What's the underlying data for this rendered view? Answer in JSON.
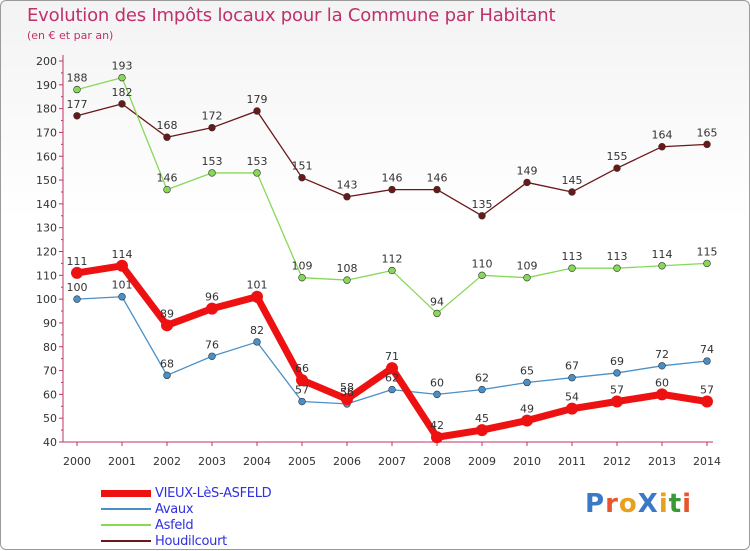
{
  "header": {
    "title": "Evolution des Impôts locaux pour la Commune par Habitant",
    "subtitle": "(en € et par an)"
  },
  "brand": {
    "text": "ProXiti",
    "colors": [
      "#3a78c8",
      "#e8542c",
      "#e8a020",
      "#3a78c8",
      "#e8a020",
      "#3a9a3a",
      "#e8542c"
    ]
  },
  "chart_data": {
    "type": "line",
    "title": "Evolution des Impôts locaux pour la Commune par Habitant",
    "xlabel": "",
    "ylabel": "",
    "ylim": [
      40,
      200
    ],
    "yticks": [
      40,
      50,
      60,
      70,
      80,
      90,
      100,
      110,
      120,
      130,
      140,
      150,
      160,
      170,
      180,
      190,
      200
    ],
    "grid": false,
    "legend_position": "bottom-left",
    "x": [
      "2000",
      "2001",
      "2002",
      "2003",
      "2004",
      "2005",
      "2006",
      "2007",
      "2008",
      "2009",
      "2010",
      "2011",
      "2012",
      "2013",
      "2014"
    ],
    "series": [
      {
        "name": "VIEUX-LèS-ASFELD",
        "color": "#ee1111",
        "values": [
          111,
          114,
          89,
          96,
          101,
          66,
          58,
          71,
          42,
          45,
          49,
          54,
          57,
          60,
          57
        ]
      },
      {
        "name": "Avaux",
        "color": "#4a90c8",
        "values": [
          100,
          101,
          68,
          76,
          82,
          57,
          56,
          62,
          60,
          62,
          65,
          67,
          69,
          72,
          74
        ]
      },
      {
        "name": "Asfeld",
        "color": "#88d858",
        "values": [
          188,
          193,
          146,
          153,
          153,
          109,
          108,
          112,
          94,
          110,
          109,
          113,
          113,
          114,
          115
        ]
      },
      {
        "name": "Houdilcourt",
        "color": "#6a1818",
        "values": [
          177,
          182,
          168,
          172,
          179,
          151,
          143,
          146,
          146,
          135,
          149,
          145,
          155,
          164,
          165
        ]
      }
    ]
  }
}
